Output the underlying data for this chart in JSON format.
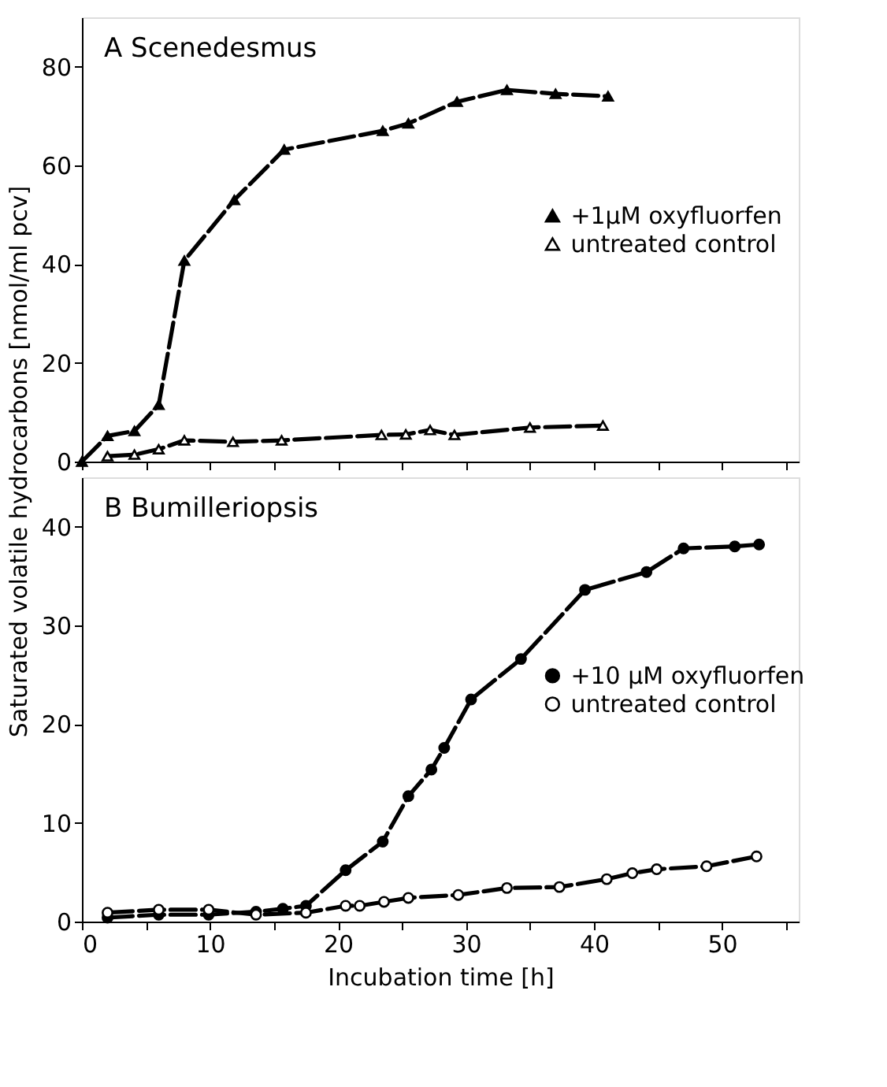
{
  "chart_data": [
    {
      "type": "line",
      "annotations": [
        "A  Scenedesmus"
      ],
      "ylabel": "Saturated volatile hydrocarbons [nmol/ml pcv]",
      "xlim": [
        0,
        56
      ],
      "ylim": [
        0,
        90
      ],
      "xticks": [
        {
          "value": 0,
          "label": null
        },
        {
          "value": 5,
          "label": null
        },
        {
          "value": 10,
          "label": null
        },
        {
          "value": 15,
          "label": null
        },
        {
          "value": 20,
          "label": null
        },
        {
          "value": 25,
          "label": null
        },
        {
          "value": 30,
          "label": null
        },
        {
          "value": 35,
          "label": null
        },
        {
          "value": 40,
          "label": null
        },
        {
          "value": 45,
          "label": null
        },
        {
          "value": 50,
          "label": null
        },
        {
          "value": 55,
          "label": null
        }
      ],
      "yticks": [
        0,
        20,
        40,
        60,
        80
      ],
      "tick_labels": "y",
      "grid": false,
      "legend": "right",
      "line_style": "dashed",
      "series": [
        {
          "name": "+1µM oxyfluorfen",
          "color": "#000000",
          "marker": "triangle",
          "x": [
            0,
            2.0,
            4.1,
            6.0,
            8.0,
            11.9,
            15.8,
            23.5,
            25.5,
            29.3,
            33.2,
            37.0,
            41.1
          ],
          "values": [
            0,
            5.2,
            6.2,
            11.5,
            40.7,
            53,
            63.2,
            67,
            68.5,
            72.9,
            75.3,
            74.5,
            74
          ]
        },
        {
          "name": "untreated control",
          "color": "#000000",
          "marker": "triangle",
          "x": [
            2.0,
            4.1,
            6.0,
            8.0,
            11.8,
            15.6,
            23.4,
            25.3,
            27.2,
            29.1,
            35.0,
            40.7
          ],
          "values": [
            1.1,
            1.4,
            2.5,
            4.3,
            4.0,
            4.3,
            5.4,
            5.5,
            6.4,
            5.4,
            6.9,
            7.3
          ]
        }
      ]
    },
    {
      "type": "line",
      "annotations": [
        "B  Bumilleriopsis"
      ],
      "xlabel": "Incubation time [h]",
      "xlim": [
        0,
        56
      ],
      "ylim": [
        0,
        45
      ],
      "xticks": [
        0,
        {
          "value": 5,
          "label": null
        },
        10,
        {
          "value": 15,
          "label": null
        },
        20,
        {
          "value": 25,
          "label": null
        },
        30,
        {
          "value": 35,
          "label": null
        },
        40,
        {
          "value": 45,
          "label": null
        },
        50,
        {
          "value": 55,
          "label": null
        }
      ],
      "yticks": [
        0,
        10,
        20,
        30,
        40
      ],
      "grid": false,
      "legend": "right",
      "line_style": "dashed",
      "series": [
        {
          "name": "+10 µM oxyfluorfen",
          "color": "#000000",
          "marker": "circle",
          "x": [
            2.0,
            6.0,
            9.9,
            13.6,
            15.7,
            17.5,
            20.6,
            23.5,
            25.5,
            27.3,
            28.3,
            30.4,
            34.3,
            39.3,
            44.1,
            47.0,
            51.0,
            52.9
          ],
          "values": [
            0.4,
            0.7,
            0.7,
            1.0,
            1.3,
            1.6,
            5.2,
            8.1,
            12.7,
            15.4,
            17.6,
            22.5,
            26.6,
            33.6,
            35.4,
            37.8,
            38.0,
            38.2
          ]
        },
        {
          "name": "untreated control",
          "color": "#000000",
          "marker": "circle",
          "x": [
            2.0,
            6.0,
            9.9,
            13.6,
            17.5,
            20.6,
            21.7,
            23.6,
            25.5,
            29.4,
            33.2,
            37.3,
            41.0,
            43.0,
            44.9,
            48.8,
            52.7
          ],
          "values": [
            0.9,
            1.2,
            1.2,
            0.7,
            0.9,
            1.6,
            1.6,
            2.0,
            2.4,
            2.7,
            3.4,
            3.5,
            4.3,
            4.9,
            5.3,
            5.6,
            6.6
          ]
        }
      ]
    }
  ]
}
